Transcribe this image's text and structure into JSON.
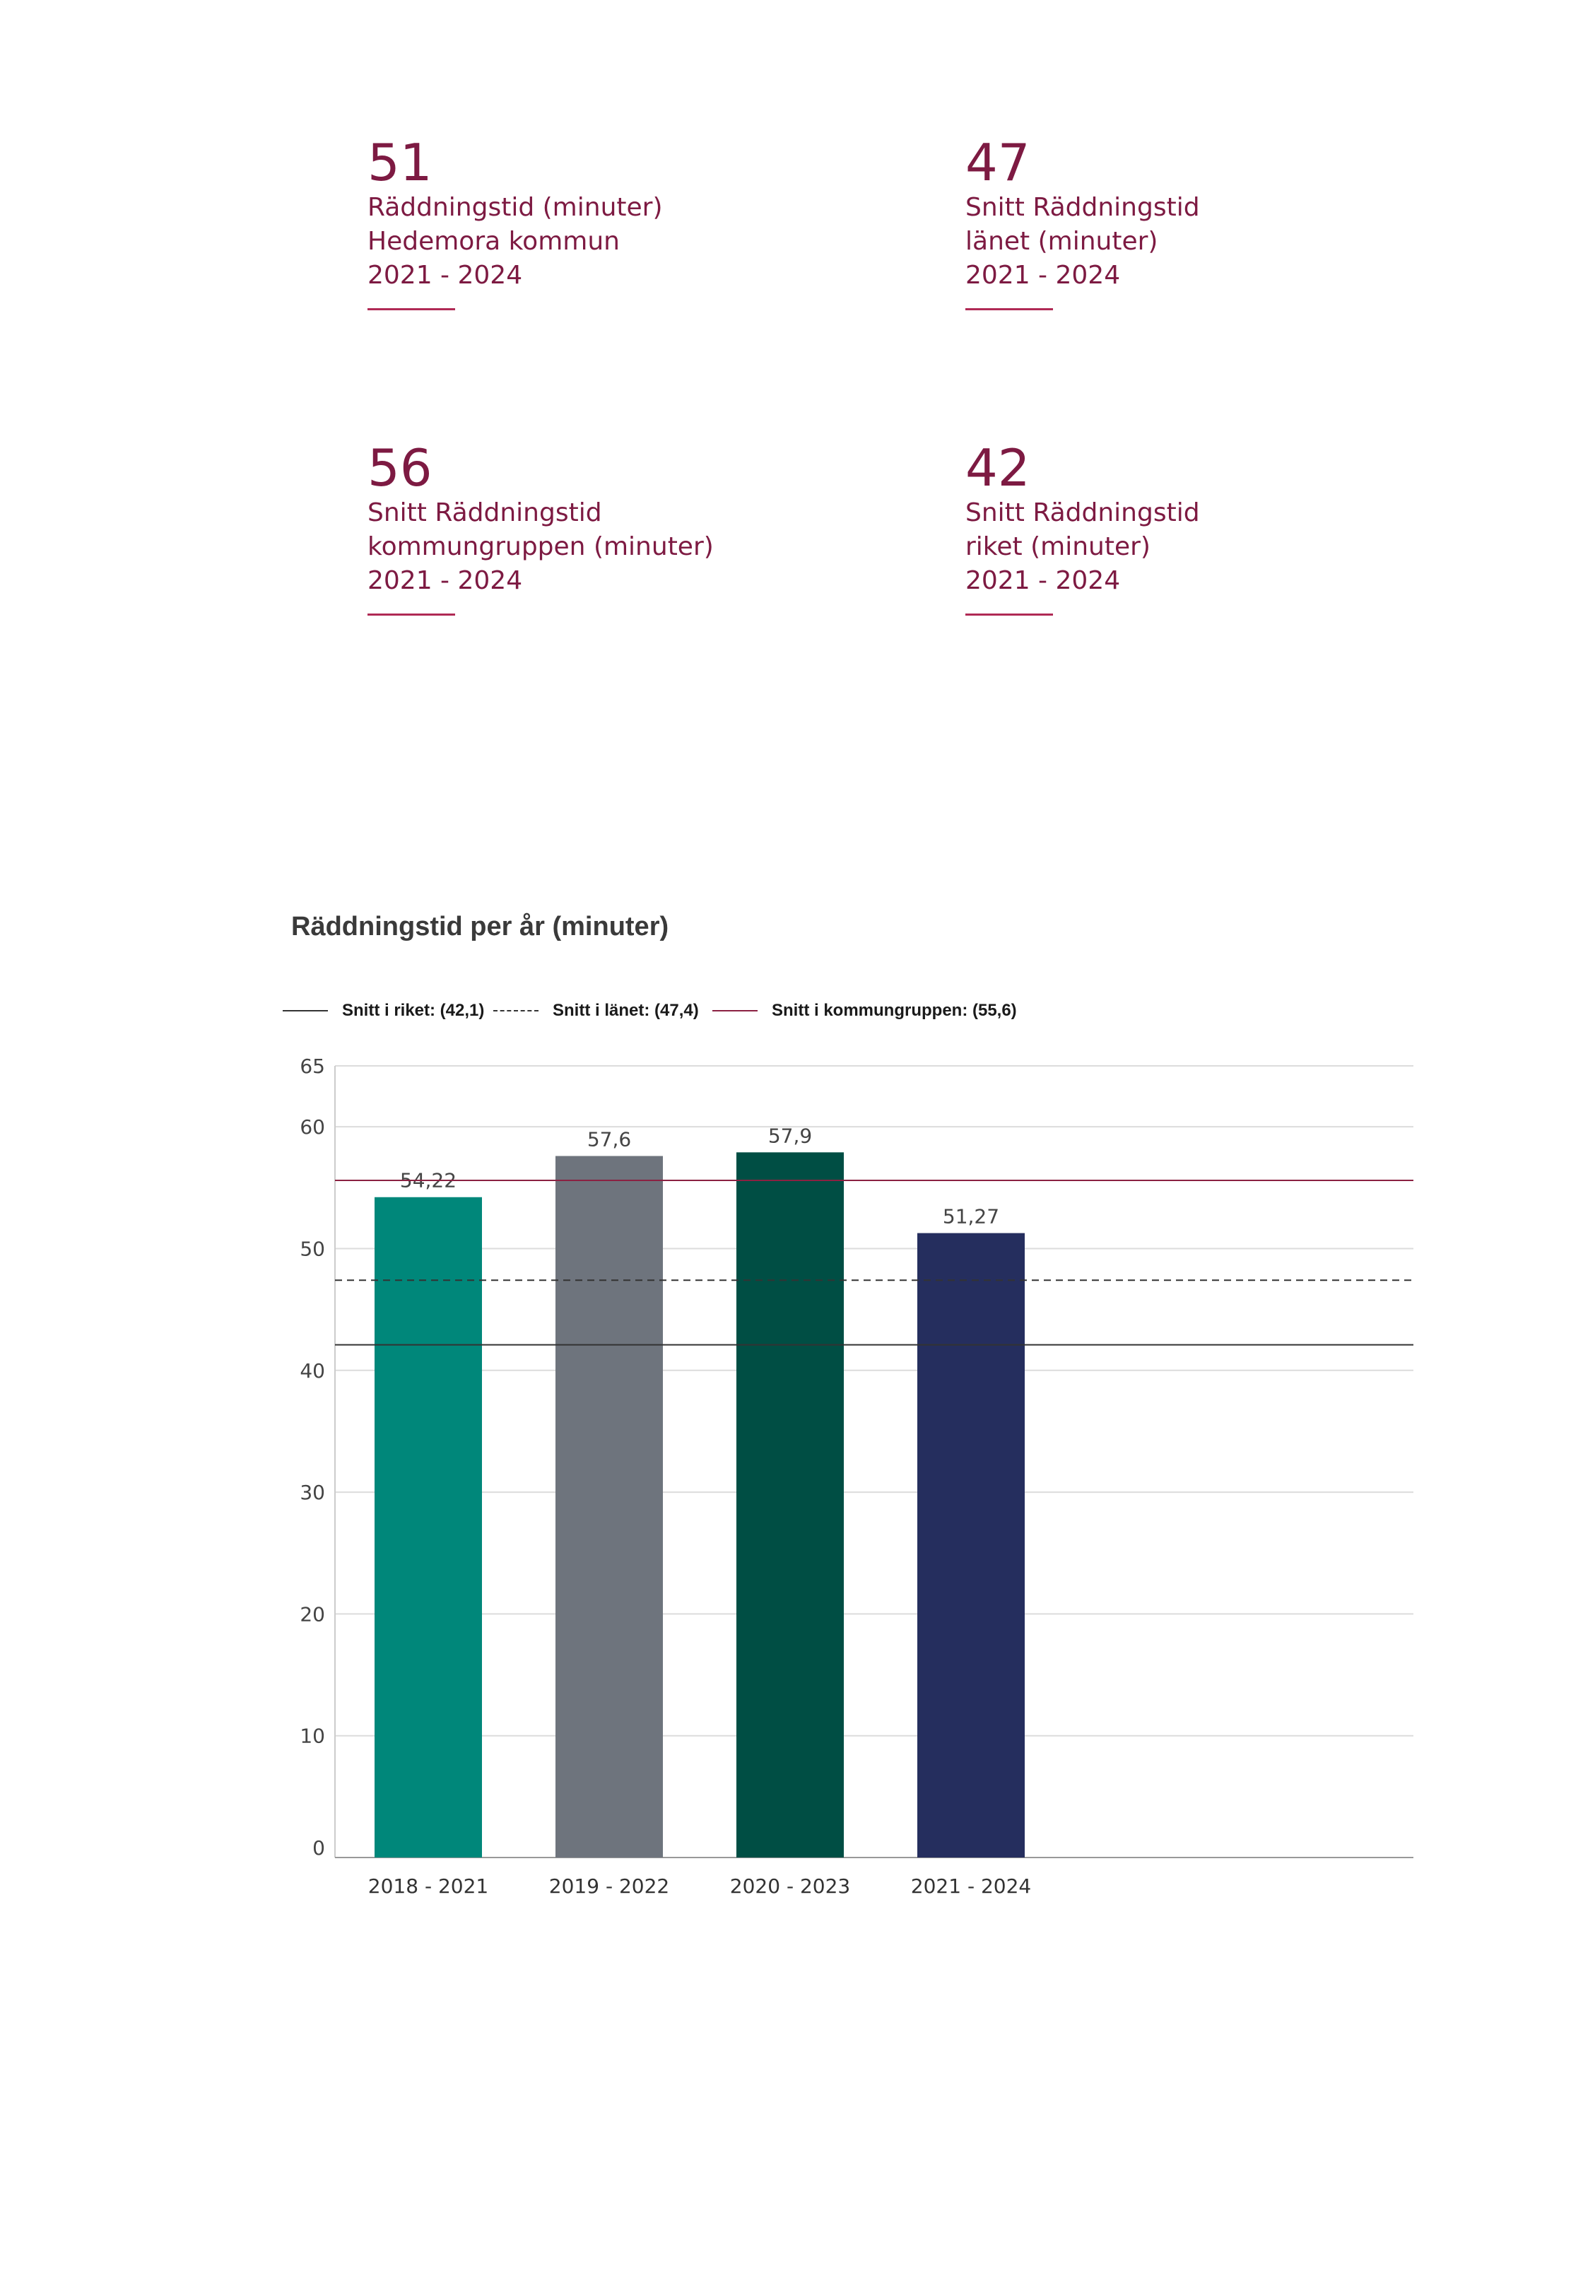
{
  "kpis": [
    {
      "value": "51",
      "lines": [
        "Räddningstid (minuter)",
        "Hedemora kommun",
        "2021 - 2024"
      ]
    },
    {
      "value": "47",
      "lines": [
        "Snitt Räddningstid",
        "länet (minuter)",
        "2021 - 2024"
      ]
    },
    {
      "value": "56",
      "lines": [
        "Snitt Räddningstid",
        "kommungruppen (minuter)",
        "2021 - 2024"
      ]
    },
    {
      "value": "42",
      "lines": [
        "Snitt Räddningstid",
        "riket (minuter)",
        "2021 - 2024"
      ]
    }
  ],
  "colors": {
    "accent": "#7d1a42",
    "bars": [
      "#00877a",
      "#6e747d",
      "#004e44",
      "#252e5e"
    ],
    "grid": "#dcdcdc",
    "riket_line": "#333333",
    "lanet_line": "#333333",
    "kommungrupp_line": "#8b2142"
  },
  "chart_data": {
    "type": "bar",
    "title": "Räddningstid per år (minuter)",
    "categories": [
      "2018 - 2021",
      "2019 - 2022",
      "2020 - 2023",
      "2021 - 2024"
    ],
    "values": [
      54.22,
      57.6,
      57.9,
      51.27
    ],
    "value_labels": [
      "54,22",
      "57,6",
      "57,9",
      "51,27"
    ],
    "ylim": [
      0,
      65
    ],
    "yticks": [
      0,
      10,
      20,
      30,
      40,
      50,
      60,
      65
    ],
    "grid": true,
    "xlabel": "",
    "ylabel": "",
    "legend_position": "top",
    "reference_lines": [
      {
        "name": "Snitt i riket",
        "label": "Snitt i riket: (42,1)",
        "value": 42.1,
        "style": "solid"
      },
      {
        "name": "Snitt i länet",
        "label": "Snitt i länet: (47,4)",
        "value": 47.4,
        "style": "dashed"
      },
      {
        "name": "Snitt i kommungruppen",
        "label": "Snitt i kommungruppen: (55,6)",
        "value": 55.6,
        "style": "solid-accent"
      }
    ]
  }
}
